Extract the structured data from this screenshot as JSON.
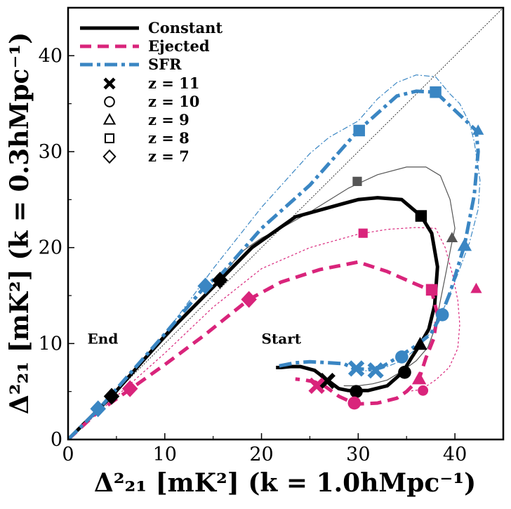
{
  "chart_data": {
    "type": "line",
    "xlabel": "Δ²₂₁ [mK²] (k = 1.0hMpc⁻¹)",
    "ylabel": "Δ²₂₁ [mK²] (k = 0.3hMpc⁻¹)",
    "xlim": [
      0,
      45
    ],
    "ylim": [
      0,
      45
    ],
    "xticks": [
      "0",
      "10",
      "20",
      "30",
      "40"
    ],
    "yticks": [
      "0",
      "10",
      "20",
      "30",
      "40"
    ],
    "grid": false,
    "legend_position": "top-left",
    "diagonal": {
      "style": "thin dotted black",
      "from": [
        0,
        0
      ],
      "to": [
        45,
        45
      ]
    },
    "annotations": [
      {
        "text": "End",
        "x": 2,
        "y": 10
      },
      {
        "text": "Start",
        "x": 20,
        "y": 10
      }
    ],
    "series": [
      {
        "name": "Constant",
        "color": "#000000",
        "style": "solid",
        "points": [
          [
            0,
            0
          ],
          [
            4.5,
            4.5
          ],
          [
            10,
            10.8
          ],
          [
            15.7,
            16.6
          ],
          [
            19,
            20
          ],
          [
            23.5,
            23.2
          ],
          [
            28.5,
            24.6
          ],
          [
            30,
            25
          ],
          [
            32,
            25.2
          ],
          [
            34.5,
            25
          ],
          [
            36.5,
            23.3
          ],
          [
            37.6,
            21.5
          ],
          [
            38.2,
            18
          ],
          [
            37.9,
            14
          ],
          [
            37.3,
            11.5
          ],
          [
            36.4,
            9.9
          ],
          [
            35.5,
            8.5
          ],
          [
            34.6,
            7
          ],
          [
            33,
            5.6
          ],
          [
            31,
            5.1
          ],
          [
            29,
            5.1
          ],
          [
            28,
            5.3
          ],
          [
            26.8,
            6.2
          ],
          [
            25.5,
            7.2
          ],
          [
            24,
            7.6
          ],
          [
            23,
            7.6
          ],
          [
            22,
            7.5
          ],
          [
            21.5,
            7.5
          ]
        ],
        "markers": [
          {
            "z": "11",
            "x": 26.8,
            "y": 6.1
          },
          {
            "z": "10",
            "x": 29.8,
            "y": 5.0
          },
          {
            "z": "10",
            "x": 34.8,
            "y": 7.0
          },
          {
            "z": "9",
            "x": 36.4,
            "y": 9.9
          },
          {
            "z": "8",
            "x": 36.5,
            "y": 23.3
          },
          {
            "z": "7",
            "x": 15.7,
            "y": 16.6
          },
          {
            "z": "7",
            "x": 4.5,
            "y": 4.5
          }
        ]
      },
      {
        "name": "Ejected",
        "color": "#d9247b",
        "style": "dashed",
        "points": [
          [
            0,
            0
          ],
          [
            3,
            2.8
          ],
          [
            6.5,
            5.3
          ],
          [
            10,
            7.8
          ],
          [
            14,
            10.8
          ],
          [
            18.7,
            14.6
          ],
          [
            22,
            16.4
          ],
          [
            26,
            17.7
          ],
          [
            30,
            18.5
          ],
          [
            33,
            17.5
          ],
          [
            35.5,
            16.4
          ],
          [
            37.6,
            15.5
          ],
          [
            38.2,
            13
          ],
          [
            37.8,
            10.5
          ],
          [
            37,
            8.5
          ],
          [
            36.3,
            6.3
          ],
          [
            35,
            5
          ],
          [
            34,
            4.3
          ],
          [
            32,
            3.8
          ],
          [
            30,
            3.7
          ],
          [
            29.5,
            3.8
          ],
          [
            28,
            4.5
          ],
          [
            26.5,
            5.6
          ],
          [
            25.5,
            6
          ],
          [
            24.5,
            6.2
          ],
          [
            23.5,
            6.3
          ]
        ],
        "markers": [
          {
            "z": "11",
            "x": 25.7,
            "y": 5.6
          },
          {
            "z": "10",
            "x": 29.6,
            "y": 3.8
          },
          {
            "z": "9",
            "x": 36.3,
            "y": 6.3
          },
          {
            "z": "8",
            "x": 37.6,
            "y": 15.6
          },
          {
            "z": "7",
            "x": 18.7,
            "y": 14.6
          },
          {
            "z": "7",
            "x": 6.4,
            "y": 5.3
          }
        ]
      },
      {
        "name": "SFR",
        "color": "#3a86c3",
        "style": "dashdot",
        "points": [
          [
            0,
            0
          ],
          [
            3.2,
            3.2
          ],
          [
            10,
            11
          ],
          [
            14.2,
            16
          ],
          [
            16,
            17.4
          ],
          [
            20,
            22
          ],
          [
            25,
            26.5
          ],
          [
            30,
            32.2
          ],
          [
            34,
            35.8
          ],
          [
            36,
            36.3
          ],
          [
            38,
            36.2
          ],
          [
            40,
            34.3
          ],
          [
            42.2,
            32.2
          ],
          [
            42.4,
            30
          ],
          [
            42,
            25.5
          ],
          [
            41,
            20.3
          ],
          [
            39.5,
            15.3
          ],
          [
            38.6,
            13
          ],
          [
            37.5,
            11
          ],
          [
            36,
            9.8
          ],
          [
            34.5,
            8.8
          ],
          [
            32.5,
            7.6
          ],
          [
            31,
            7.3
          ],
          [
            29.5,
            7.4
          ],
          [
            28.5,
            7.9
          ],
          [
            27,
            8
          ],
          [
            25,
            8.1
          ],
          [
            23.5,
            8
          ],
          [
            21.5,
            7.6
          ]
        ],
        "markers": [
          {
            "z": "11",
            "x": 29.8,
            "y": 7.4
          },
          {
            "z": "11",
            "x": 31.8,
            "y": 7.2
          },
          {
            "z": "10",
            "x": 34.5,
            "y": 8.6
          },
          {
            "z": "10",
            "x": 38.7,
            "y": 13.0
          },
          {
            "z": "9",
            "x": 41.0,
            "y": 20.2
          },
          {
            "z": "8",
            "x": 30.1,
            "y": 32.2
          },
          {
            "z": "8",
            "x": 38.0,
            "y": 36.2
          },
          {
            "z": "7",
            "x": 14.2,
            "y": 16.0
          },
          {
            "z": "7",
            "x": 3.1,
            "y": 3.2
          }
        ]
      }
    ],
    "thin_companion_series": [
      {
        "name": "Constant",
        "color": "#555555",
        "points": [
          [
            0,
            0
          ],
          [
            5,
            5
          ],
          [
            10,
            10.5
          ],
          [
            15,
            16
          ],
          [
            18,
            19.6
          ],
          [
            20,
            21
          ],
          [
            22,
            22
          ],
          [
            25,
            23.7
          ],
          [
            29,
            26.2
          ],
          [
            32,
            27.6
          ],
          [
            35,
            28.4
          ],
          [
            37,
            28.4
          ],
          [
            38.5,
            27.5
          ],
          [
            39.5,
            25
          ],
          [
            40,
            22
          ],
          [
            39.6,
            20.1
          ],
          [
            39,
            17
          ],
          [
            38.4,
            14
          ],
          [
            37.9,
            11.5
          ],
          [
            37.2,
            9.6
          ],
          [
            36,
            8.2
          ],
          [
            34.5,
            7.1
          ],
          [
            33,
            6.2
          ],
          [
            31.5,
            5.8
          ],
          [
            30,
            5.6
          ],
          [
            28.5,
            5.6
          ]
        ],
        "markers": [
          {
            "z": "9",
            "x": 39.7,
            "y": 21.0
          },
          {
            "z": "8",
            "x": 29.9,
            "y": 26.9
          }
        ]
      },
      {
        "name": "Ejected",
        "color": "#d9247b",
        "points": [
          [
            0,
            0
          ],
          [
            5,
            4.5
          ],
          [
            10,
            9
          ],
          [
            15,
            13.8
          ],
          [
            20,
            17.8
          ],
          [
            25,
            20
          ],
          [
            30,
            21.4
          ],
          [
            33,
            21.9
          ],
          [
            36,
            22.1
          ],
          [
            38,
            22
          ],
          [
            39,
            20
          ],
          [
            39.8,
            17
          ],
          [
            40.3,
            14.5
          ],
          [
            40.5,
            12
          ],
          [
            40.3,
            9.5
          ],
          [
            39.4,
            7.5
          ],
          [
            38,
            6.2
          ],
          [
            36.5,
            5.2
          ],
          [
            35,
            5
          ]
        ],
        "markers": [
          {
            "z": "10",
            "x": 36.7,
            "y": 5.1
          },
          {
            "z": "9",
            "x": 42.2,
            "y": 15.7
          },
          {
            "z": "8",
            "x": 30.5,
            "y": 21.5
          }
        ]
      },
      {
        "name": "SFR",
        "color": "#3a86c3",
        "points": [
          [
            0,
            0
          ],
          [
            5,
            5.2
          ],
          [
            10,
            11
          ],
          [
            15,
            17.8
          ],
          [
            20,
            24.2
          ],
          [
            25,
            29.8
          ],
          [
            27,
            31.5
          ],
          [
            30,
            33.2
          ],
          [
            32,
            35.5
          ],
          [
            34,
            37.2
          ],
          [
            36,
            38
          ],
          [
            38,
            37.8
          ],
          [
            39.5,
            36
          ],
          [
            40.5,
            35
          ],
          [
            41.5,
            33
          ],
          [
            42,
            31
          ],
          [
            42.6,
            27
          ],
          [
            42.4,
            24
          ],
          [
            41.5,
            20.5
          ],
          [
            40.2,
            17
          ],
          [
            39,
            14
          ],
          [
            37.8,
            11.5
          ],
          [
            36.3,
            9.7
          ],
          [
            34.5,
            8.2
          ],
          [
            32.5,
            7.4
          ],
          [
            31.5,
            7.1
          ],
          [
            30.5,
            7.2
          ]
        ],
        "markers": [
          {
            "z": "9",
            "x": 42.4,
            "y": 32.2
          }
        ]
      }
    ],
    "legend": {
      "series": [
        {
          "label": "Constant",
          "color": "#000000",
          "style": "solid"
        },
        {
          "label": "Ejected",
          "color": "#d9247b",
          "style": "dashed"
        },
        {
          "label": "SFR",
          "color": "#3a86c3",
          "style": "dashdot"
        }
      ],
      "markers": [
        {
          "label": "z = 11",
          "shape": "x"
        },
        {
          "label": "z = 10",
          "shape": "circle"
        },
        {
          "label": "z = 9",
          "shape": "triangle"
        },
        {
          "label": "z = 8",
          "shape": "square"
        },
        {
          "label": "z = 7",
          "shape": "diamond"
        }
      ]
    }
  }
}
